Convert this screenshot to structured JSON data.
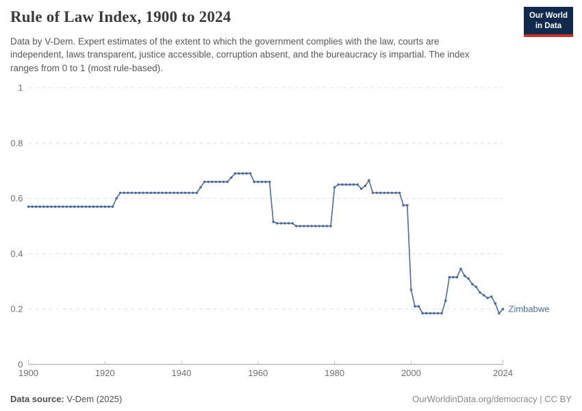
{
  "header": {
    "title": "Rule of Law Index, 1900 to 2024",
    "subtitle": "Data by V-Dem. Expert estimates of the extent to which the government complies with the law, courts are independent, laws transparent, justice accessible, corruption absent, and the bureaucracy is impartial. The index ranges from 0 to 1 (most rule-based).",
    "logo": {
      "line1": "Our World",
      "line2": "in Data"
    }
  },
  "chart_data": {
    "type": "line",
    "title": "Rule of Law Index, 1900 to 2024",
    "entity": "Zimbabwe",
    "xlim": [
      1900,
      2024
    ],
    "ylim": [
      0,
      1
    ],
    "x_ticks": [
      1900,
      1920,
      1940,
      1960,
      1980,
      2000,
      2024
    ],
    "y_ticks": [
      1,
      0.8,
      0.6,
      0.4,
      0.2,
      0
    ],
    "y_tick_labels": [
      "1",
      "0.8",
      "0.6",
      "0.4",
      "0.2",
      "0"
    ],
    "grid": "horizontal-dashed",
    "legend": "inline-entity-label-right",
    "line_color": "#4c6a9c",
    "grid_color": "#dddddd",
    "axis_color": "#9a9a9a",
    "x": [
      1900,
      1901,
      1902,
      1903,
      1904,
      1905,
      1906,
      1907,
      1908,
      1909,
      1910,
      1911,
      1912,
      1913,
      1914,
      1915,
      1916,
      1917,
      1918,
      1919,
      1920,
      1921,
      1922,
      1923,
      1924,
      1925,
      1926,
      1927,
      1928,
      1929,
      1930,
      1931,
      1932,
      1933,
      1934,
      1935,
      1936,
      1937,
      1938,
      1939,
      1940,
      1941,
      1942,
      1943,
      1944,
      1945,
      1946,
      1947,
      1948,
      1949,
      1950,
      1951,
      1952,
      1953,
      1954,
      1955,
      1956,
      1957,
      1958,
      1959,
      1960,
      1961,
      1962,
      1963,
      1964,
      1965,
      1966,
      1967,
      1968,
      1969,
      1970,
      1971,
      1972,
      1973,
      1974,
      1975,
      1976,
      1977,
      1978,
      1979,
      1980,
      1981,
      1982,
      1983,
      1984,
      1985,
      1986,
      1987,
      1988,
      1989,
      1990,
      1991,
      1992,
      1993,
      1994,
      1995,
      1996,
      1997,
      1998,
      1999,
      2000,
      2001,
      2002,
      2003,
      2004,
      2005,
      2006,
      2007,
      2008,
      2009,
      2010,
      2011,
      2012,
      2013,
      2014,
      2015,
      2016,
      2017,
      2018,
      2019,
      2020,
      2021,
      2022,
      2023,
      2024
    ],
    "y": [
      0.57,
      0.57,
      0.57,
      0.57,
      0.57,
      0.57,
      0.57,
      0.57,
      0.57,
      0.57,
      0.57,
      0.57,
      0.57,
      0.57,
      0.57,
      0.57,
      0.57,
      0.57,
      0.57,
      0.57,
      0.57,
      0.57,
      0.57,
      0.6,
      0.62,
      0.62,
      0.62,
      0.62,
      0.62,
      0.62,
      0.62,
      0.62,
      0.62,
      0.62,
      0.62,
      0.62,
      0.62,
      0.62,
      0.62,
      0.62,
      0.62,
      0.62,
      0.62,
      0.62,
      0.62,
      0.64,
      0.66,
      0.66,
      0.66,
      0.66,
      0.66,
      0.66,
      0.66,
      0.675,
      0.69,
      0.69,
      0.69,
      0.69,
      0.69,
      0.66,
      0.66,
      0.66,
      0.66,
      0.66,
      0.515,
      0.51,
      0.51,
      0.51,
      0.51,
      0.51,
      0.5,
      0.5,
      0.5,
      0.5,
      0.5,
      0.5,
      0.5,
      0.5,
      0.5,
      0.5,
      0.64,
      0.65,
      0.65,
      0.65,
      0.65,
      0.65,
      0.65,
      0.635,
      0.645,
      0.665,
      0.62,
      0.62,
      0.62,
      0.62,
      0.62,
      0.62,
      0.62,
      0.62,
      0.575,
      0.575,
      0.27,
      0.21,
      0.21,
      0.185,
      0.185,
      0.185,
      0.185,
      0.185,
      0.185,
      0.23,
      0.315,
      0.315,
      0.315,
      0.345,
      0.32,
      0.31,
      0.29,
      0.28,
      0.26,
      0.25,
      0.24,
      0.245,
      0.22,
      0.185,
      0.2
    ]
  },
  "footer": {
    "source_label": "Data source:",
    "source_value": " V-Dem (2025)",
    "right": "OurWorldinData.org/democracy | CC BY"
  }
}
